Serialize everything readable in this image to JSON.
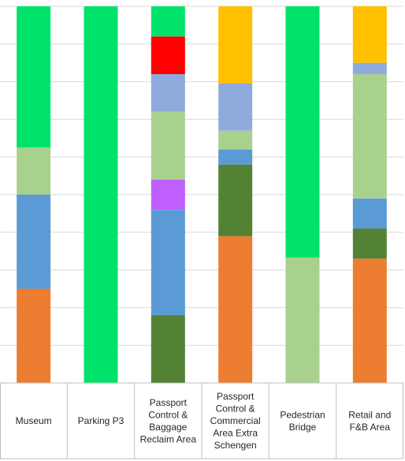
{
  "chart_data": {
    "type": "bar",
    "stacked": true,
    "percent_stacked": true,
    "categories": [
      "Museum",
      "Parking P3",
      "Passport Control & Baggage Reclaim Area",
      "Passport Control & Commercial Area Extra Schengen",
      "Pedestrian Bridge",
      "Retail and F&B Area"
    ],
    "category_lines": [
      [
        "Museum"
      ],
      [
        "Parking P3"
      ],
      [
        "Passport",
        "Control &",
        "Baggage",
        "Reclaim Area"
      ],
      [
        "Passport",
        "Control &",
        "Commercial",
        "Area Extra",
        "Schengen"
      ],
      [
        "Pedestrian",
        "Bridge"
      ],
      [
        "Retail and",
        "F&B Area"
      ]
    ],
    "series": [
      {
        "color": "#ED7D31",
        "values": [
          25,
          0,
          0,
          39,
          0,
          33
        ]
      },
      {
        "color": "#548235",
        "values": [
          0,
          0,
          18,
          19,
          0,
          8
        ]
      },
      {
        "color": "#5B9BD5",
        "values": [
          25,
          0,
          28,
          4,
          0,
          8
        ]
      },
      {
        "color": "#BF5FFF",
        "values": [
          0,
          0,
          8,
          0,
          0,
          0
        ]
      },
      {
        "color": "#A9D18E",
        "values": [
          12.5,
          0,
          18,
          5,
          33.3,
          33
        ]
      },
      {
        "color": "#8FAADC",
        "values": [
          0,
          0,
          10,
          12.5,
          0,
          3
        ]
      },
      {
        "color": "#FF0000",
        "values": [
          0,
          0,
          10,
          0,
          0,
          0
        ]
      },
      {
        "color": "#FFC000",
        "values": [
          0,
          0,
          0,
          20.5,
          0,
          15
        ]
      },
      {
        "color": "#00E36B",
        "values": [
          37.5,
          100,
          8,
          0,
          66.7,
          0
        ]
      }
    ],
    "ylim": [
      0,
      100
    ],
    "grid": true,
    "legend": "none",
    "title": "",
    "xlabel": "",
    "ylabel": ""
  }
}
